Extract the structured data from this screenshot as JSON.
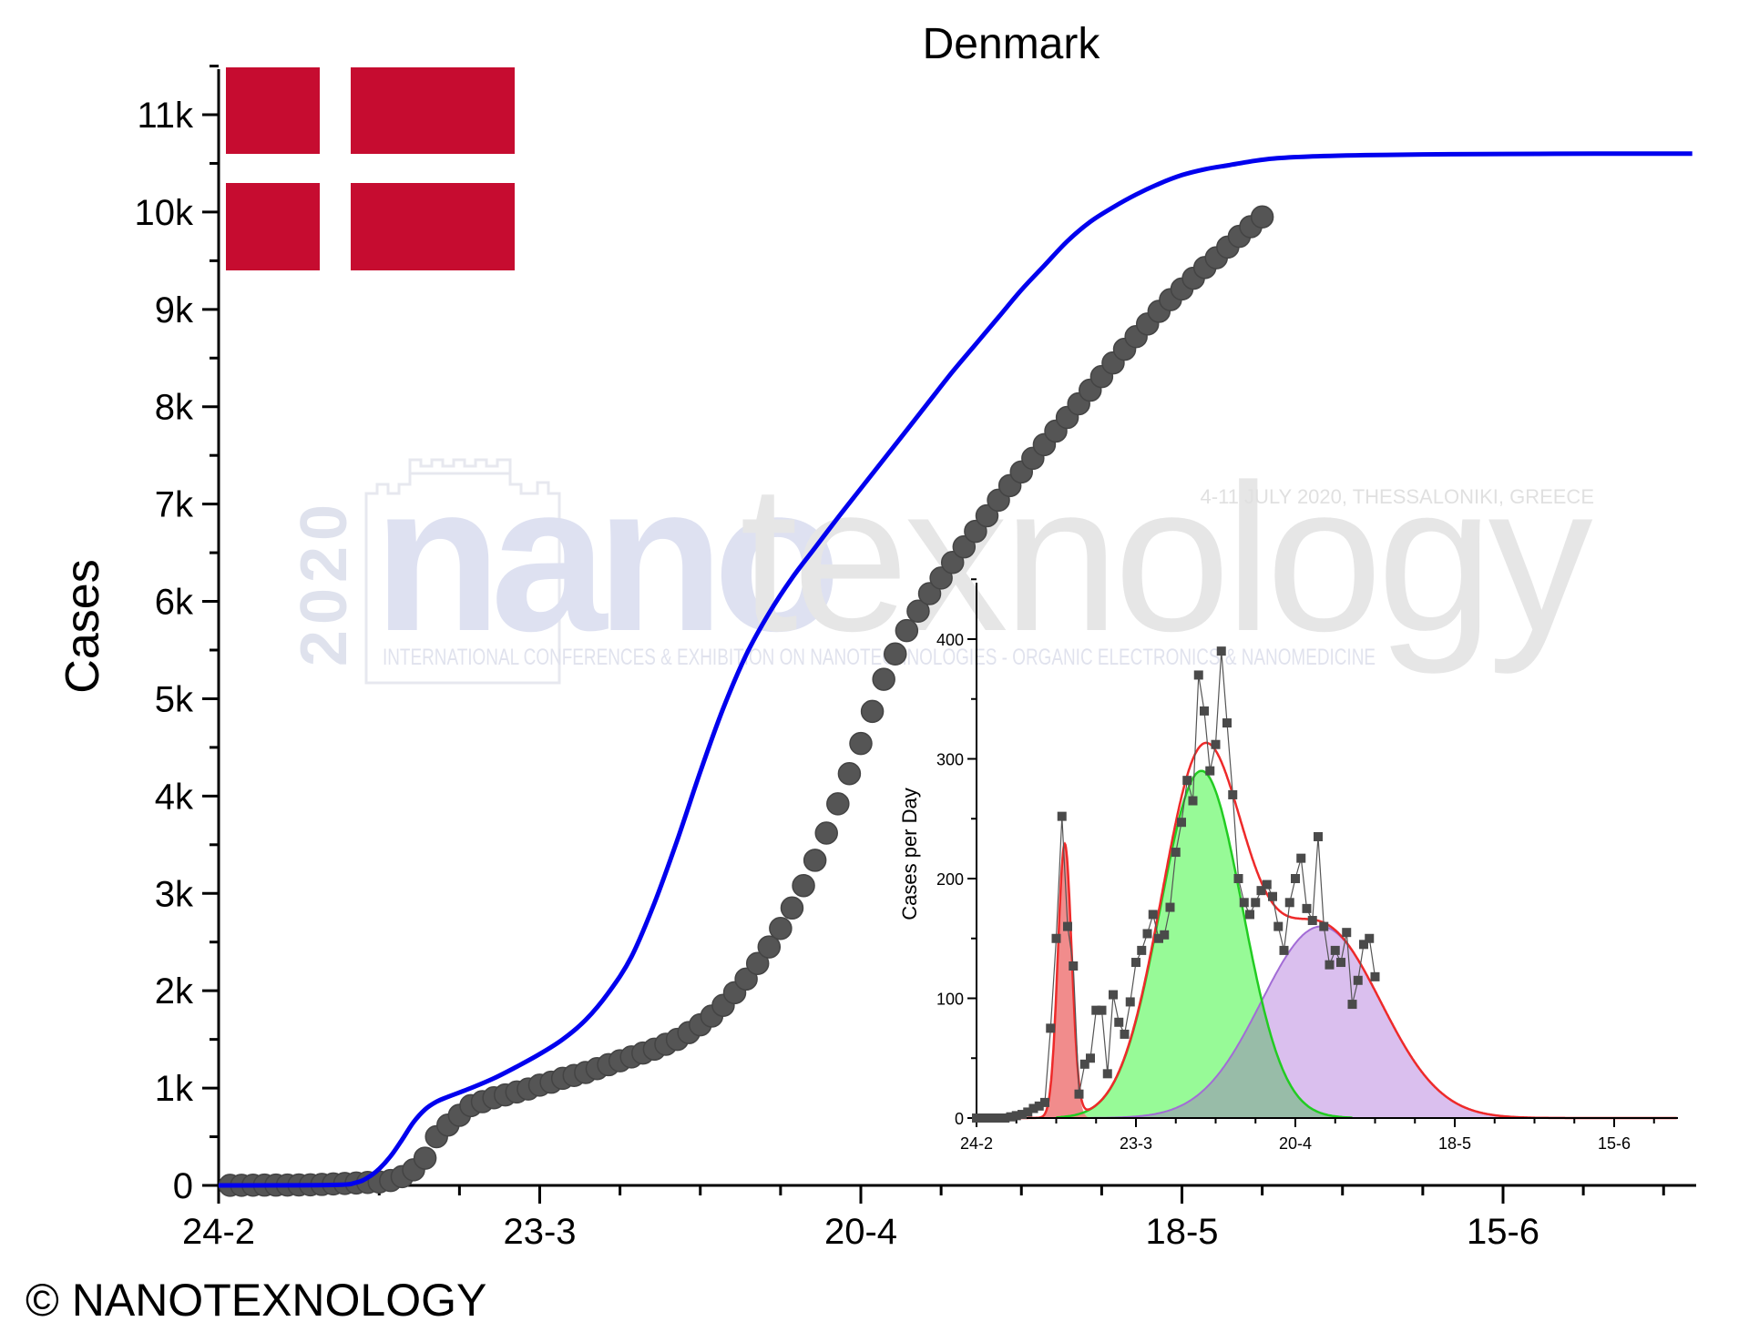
{
  "colors": {
    "fit_line": "#0000ee",
    "data_points": "#555555",
    "flag_red": "#c60c30",
    "inset_sum_line": "#ee2a2a",
    "peak1_fill": "#f08080",
    "peak2_fill": "#8cfa8c",
    "peak2_line": "#22cc22",
    "peak3_fill": "#d6b8ec",
    "peak3_line": "#a26cd6",
    "overlap_fill": "#98bca8",
    "inset_points": "#4a4a4a",
    "watermark": "#c8ccdc"
  },
  "flag": {
    "name": "Denmark flag",
    "icon": "danish-flag"
  },
  "watermark": {
    "year": "2020",
    "brand_part1": "nano",
    "brand_part2": "texnology",
    "tagline": "4-11 JULY 2020, THESSALONIKI, GREECE",
    "subtitle": "INTERNATIONAL CONFERENCES & EXHIBITION ON NANOTECHNOLOGIES - ORGANIC ELECTRONICS & NANOMEDICINE"
  },
  "copyright": "© NANOTEXNOLOGY",
  "chart_data": [
    {
      "type": "scatter",
      "title": "Denmark",
      "xlabel": "",
      "ylabel": "Cases",
      "x_tick_labels": [
        "24-2",
        "23-3",
        "20-4",
        "18-5",
        "15-6"
      ],
      "x_tick_days": [
        0,
        28,
        56,
        84,
        112
      ],
      "x_range_days": [
        0,
        128.5
      ],
      "y_tick_labels": [
        "0",
        "1k",
        "2k",
        "3k",
        "4k",
        "5k",
        "6k",
        "7k",
        "8k",
        "9k",
        "10k",
        "11k"
      ],
      "y_tick_values": [
        0,
        1000,
        2000,
        3000,
        4000,
        5000,
        6000,
        7000,
        8000,
        9000,
        10000,
        11000
      ],
      "ylim": [
        0,
        11500
      ],
      "series": [
        {
          "kind": "points",
          "x_start": "25-2",
          "y": [
            1,
            1,
            2,
            3,
            3,
            4,
            5,
            6,
            10,
            15,
            20,
            25,
            30,
            35,
            50,
            90,
            160,
            280,
            500,
            620,
            720,
            820,
            860,
            900,
            930,
            960,
            990,
            1030,
            1060,
            1100,
            1130,
            1160,
            1200,
            1240,
            1280,
            1320,
            1360,
            1400,
            1450,
            1500,
            1570,
            1650,
            1740,
            1850,
            1980,
            2120,
            2280,
            2450,
            2640,
            2850,
            3080,
            3340,
            3620,
            3920,
            4230,
            4540,
            4870,
            5200,
            5460,
            5700,
            5900,
            6080,
            6240,
            6400,
            6560,
            6720,
            6880,
            7040,
            7190,
            7330,
            7470,
            7610,
            7750,
            7890,
            8030,
            8170,
            8310,
            8450,
            8590,
            8720,
            8850,
            8980,
            9100,
            9210,
            9320,
            9430,
            9530,
            9640,
            9750,
            9850,
            9950
          ]
        },
        {
          "kind": "fit",
          "x": [
            0,
            10,
            12,
            13,
            14,
            15,
            16,
            17,
            18,
            19,
            20,
            22,
            24,
            26,
            28,
            30,
            32,
            34,
            36,
            38,
            40,
            42,
            44,
            46,
            48,
            50,
            52,
            54,
            56,
            58,
            60,
            62,
            64,
            66,
            68,
            70,
            72,
            74,
            76,
            78,
            80,
            82,
            84,
            86,
            88,
            90,
            92,
            95,
            100,
            105,
            110,
            115,
            120,
            128.5
          ],
          "y": [
            0,
            5,
            30,
            80,
            170,
            300,
            470,
            650,
            780,
            860,
            910,
            1000,
            1100,
            1220,
            1350,
            1500,
            1700,
            1980,
            2350,
            2900,
            3550,
            4250,
            4900,
            5450,
            5880,
            6240,
            6550,
            6860,
            7160,
            7460,
            7760,
            8060,
            8360,
            8640,
            8920,
            9200,
            9450,
            9700,
            9900,
            10050,
            10180,
            10290,
            10380,
            10440,
            10480,
            10520,
            10550,
            10570,
            10585,
            10592,
            10596,
            10598,
            10600,
            10600
          ]
        }
      ]
    },
    {
      "type": "scatter",
      "title": "",
      "xlabel": "",
      "ylabel": "Cases per Day",
      "x_tick_labels": [
        "24-2",
        "23-3",
        "20-4",
        "18-5",
        "15-6"
      ],
      "x_tick_days": [
        0,
        28,
        56,
        84,
        112
      ],
      "x_range_days": [
        0,
        123
      ],
      "y_tick_labels": [
        "0",
        "100",
        "200",
        "300",
        "400"
      ],
      "y_tick_values": [
        0,
        100,
        200,
        300,
        400
      ],
      "ylim": [
        0,
        450
      ],
      "series": [
        {
          "kind": "daily points",
          "x_start": "24-2",
          "y": [
            0,
            0,
            0,
            0,
            0,
            0,
            1,
            2,
            3,
            5,
            8,
            10,
            13,
            75,
            150,
            252,
            160,
            127,
            20,
            45,
            50,
            90,
            90,
            37,
            103,
            80,
            70,
            97,
            130,
            140,
            154,
            170,
            150,
            153,
            176,
            222,
            247,
            282,
            265,
            370,
            340,
            290,
            312,
            390,
            330,
            270,
            200,
            180,
            170,
            180,
            190,
            195,
            185,
            160,
            140,
            180,
            200,
            217,
            175,
            165,
            235,
            160,
            128,
            140,
            130,
            155,
            95,
            115,
            145,
            150,
            118
          ]
        },
        {
          "kind": "peak 1",
          "center_day": 15.5,
          "sigma_days": 1.2,
          "amplitude": 228
        },
        {
          "kind": "peak 2",
          "center_day": 39.5,
          "sigma_days": 7.2,
          "amplitude": 290
        },
        {
          "kind": "peak 3",
          "center_day": 60.5,
          "sigma_days": 10.5,
          "amplitude": 160
        }
      ]
    }
  ]
}
